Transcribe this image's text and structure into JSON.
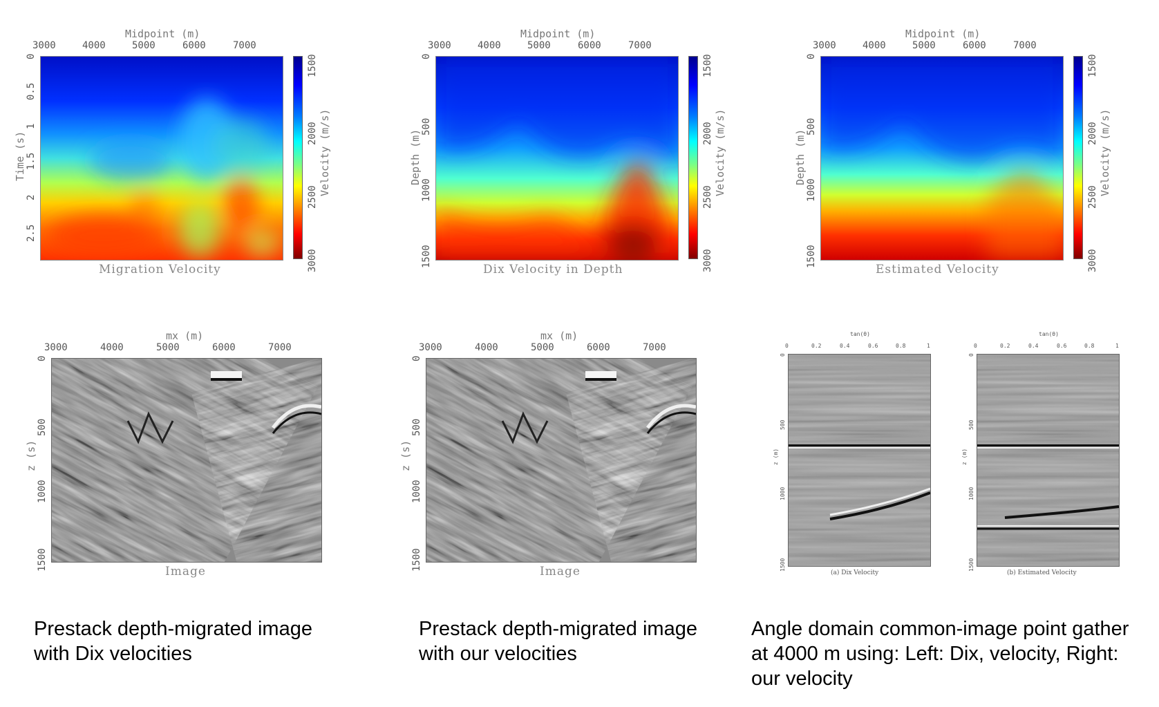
{
  "top_row": [
    {
      "x_axis_label": "Midpoint (m)",
      "x_ticks": [
        "3000",
        "4000",
        "5000",
        "6000",
        "7000"
      ],
      "y_axis_label": "Time (s)",
      "y_ticks": [
        "0",
        "0.5",
        "1",
        "1.5",
        "2",
        "2.5"
      ],
      "colorbar_label": "Velocity (m/s)",
      "colorbar_ticks": [
        "1500",
        "2000",
        "2500",
        "3000"
      ],
      "title": "Migration Velocity"
    },
    {
      "x_axis_label": "Midpoint (m)",
      "x_ticks": [
        "3000",
        "4000",
        "5000",
        "6000",
        "7000"
      ],
      "y_axis_label": "Depth (m)",
      "y_ticks": [
        "0",
        "500",
        "1000",
        "1500"
      ],
      "colorbar_label": "Velocity (m/s)",
      "colorbar_ticks": [
        "1500",
        "2000",
        "2500",
        "3000"
      ],
      "title": "Dix Velocity in Depth"
    },
    {
      "x_axis_label": "Midpoint (m)",
      "x_ticks": [
        "3000",
        "4000",
        "5000",
        "6000",
        "7000"
      ],
      "y_axis_label": "Depth (m)",
      "y_ticks": [
        "0",
        "500",
        "1000",
        "1500"
      ],
      "colorbar_label": "Velocity (m/s)",
      "colorbar_ticks": [
        "1500",
        "2000",
        "2500",
        "3000"
      ],
      "title": "Estimated Velocity"
    }
  ],
  "bottom_row": [
    {
      "x_axis_label": "mx (m)",
      "x_ticks": [
        "3000",
        "4000",
        "5000",
        "6000",
        "7000"
      ],
      "y_axis_label": "z (s)",
      "y_ticks": [
        "0",
        "500",
        "1000",
        "1500"
      ],
      "title": "Image"
    },
    {
      "x_axis_label": "mx (m)",
      "x_ticks": [
        "3000",
        "4000",
        "5000",
        "6000",
        "7000"
      ],
      "y_axis_label": "z (s)",
      "y_ticks": [
        "0",
        "500",
        "1000",
        "1500"
      ],
      "title": "Image"
    }
  ],
  "gathers": [
    {
      "x_axis_label": "tan(θ)",
      "x_ticks": [
        "0",
        "0.2",
        "0.4",
        "0.6",
        "0.8",
        "1"
      ],
      "y_axis_label": "z (m)",
      "y_ticks": [
        "0",
        "500",
        "1000",
        "1500"
      ],
      "title": "(a) Dix Velocity"
    },
    {
      "x_axis_label": "tan(θ)",
      "x_ticks": [
        "0",
        "0.2",
        "0.4",
        "0.6",
        "0.8",
        "1"
      ],
      "y_axis_label": "z (m)",
      "y_ticks": [
        "0",
        "500",
        "1000",
        "1500"
      ],
      "title": "(b) Estimated Velocity"
    }
  ],
  "captions": {
    "left": [
      "Prestack depth-migrated image",
      "with Dix velocities"
    ],
    "middle": [
      "Prestack depth-migrated image",
      "with our velocities"
    ],
    "right": [
      "Angle domain common-image point gather",
      "at 4000 m using: Left: Dix, velocity, Right:",
      "our velocity"
    ]
  }
}
